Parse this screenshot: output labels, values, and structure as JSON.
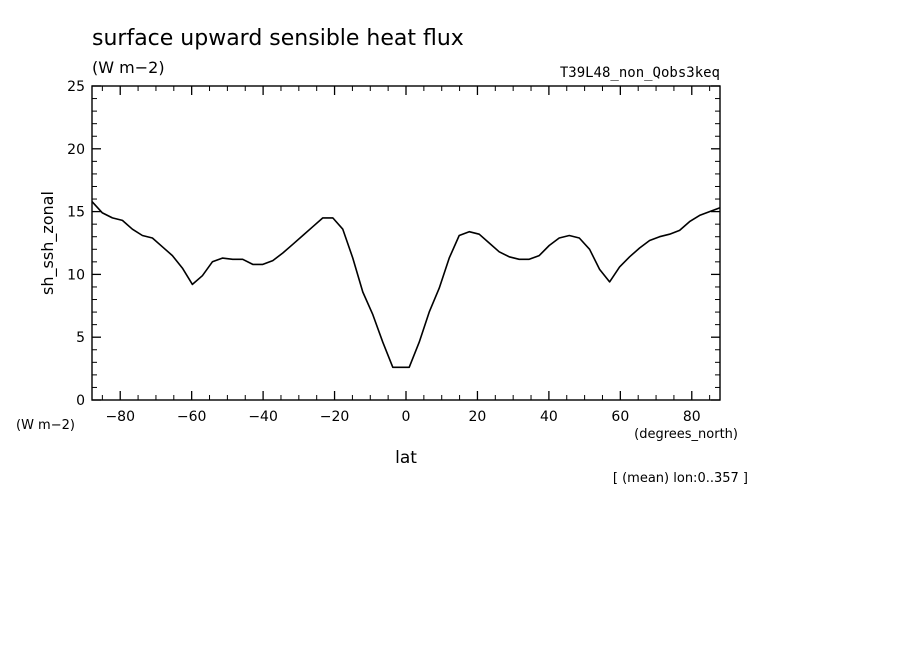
{
  "chart_data": {
    "type": "line",
    "title": "surface upward sensible heat flux",
    "units": "(W m−2)",
    "experiment": "T39L48_non_Qobs3keq",
    "ylabel": "sh_ssh_zonal",
    "y_units": "(W m−2)",
    "xlabel": "lat",
    "x_units": "(degrees_north)",
    "note": "[ (mean) lon:0..357 ]",
    "xlim": [
      -87.9,
      87.9
    ],
    "ylim": [
      0,
      25
    ],
    "xticks": [
      -80,
      -60,
      -40,
      -20,
      0,
      20,
      40,
      60,
      80
    ],
    "xtick_labels": [
      "−80",
      "−60",
      "−40",
      "−20",
      "0",
      "20",
      "40",
      "60",
      "80"
    ],
    "yticks": [
      0,
      5,
      10,
      15,
      20,
      25
    ],
    "ytick_labels": [
      "0",
      "5",
      "10",
      "15",
      "20",
      "25"
    ],
    "grid": false,
    "series": [
      {
        "x": [
          -87.9,
          -85.0,
          -82.2,
          -79.4,
          -76.6,
          -73.8,
          -71.0,
          -68.2,
          -65.4,
          -62.6,
          -59.8,
          -57.0,
          -54.2,
          -51.4,
          -48.5,
          -45.7,
          -42.9,
          -40.1,
          -37.3,
          -34.5,
          -31.7,
          -28.9,
          -26.1,
          -23.3,
          -20.5,
          -17.7,
          -14.9,
          -12.1,
          -9.3,
          -6.5,
          -3.7,
          -0.9,
          0.9,
          3.7,
          6.5,
          9.3,
          12.1,
          14.9,
          17.7,
          20.5,
          23.3,
          26.1,
          28.9,
          31.7,
          34.5,
          37.3,
          40.1,
          42.9,
          45.7,
          48.5,
          51.4,
          54.2,
          57.0,
          59.8,
          62.6,
          65.4,
          68.2,
          71.0,
          73.8,
          76.6,
          79.4,
          82.2,
          85.0,
          87.9
        ],
        "y": [
          15.8,
          14.9,
          14.5,
          14.3,
          13.6,
          13.1,
          12.9,
          12.2,
          11.5,
          10.5,
          9.2,
          9.9,
          11.0,
          11.3,
          11.2,
          11.2,
          10.8,
          10.8,
          11.1,
          11.7,
          12.4,
          13.1,
          13.8,
          14.5,
          14.5,
          13.6,
          11.3,
          8.6,
          6.8,
          4.6,
          2.6,
          2.6,
          2.6,
          4.6,
          7.0,
          8.9,
          11.3,
          13.1,
          13.4,
          13.2,
          12.5,
          11.8,
          11.4,
          11.2,
          11.2,
          11.5,
          12.3,
          12.9,
          13.1,
          12.9,
          12.0,
          10.4,
          9.4,
          10.6,
          11.4,
          12.1,
          12.7,
          13.0,
          13.2,
          13.5,
          14.2,
          14.7,
          15.0,
          15.3
        ]
      }
    ]
  }
}
